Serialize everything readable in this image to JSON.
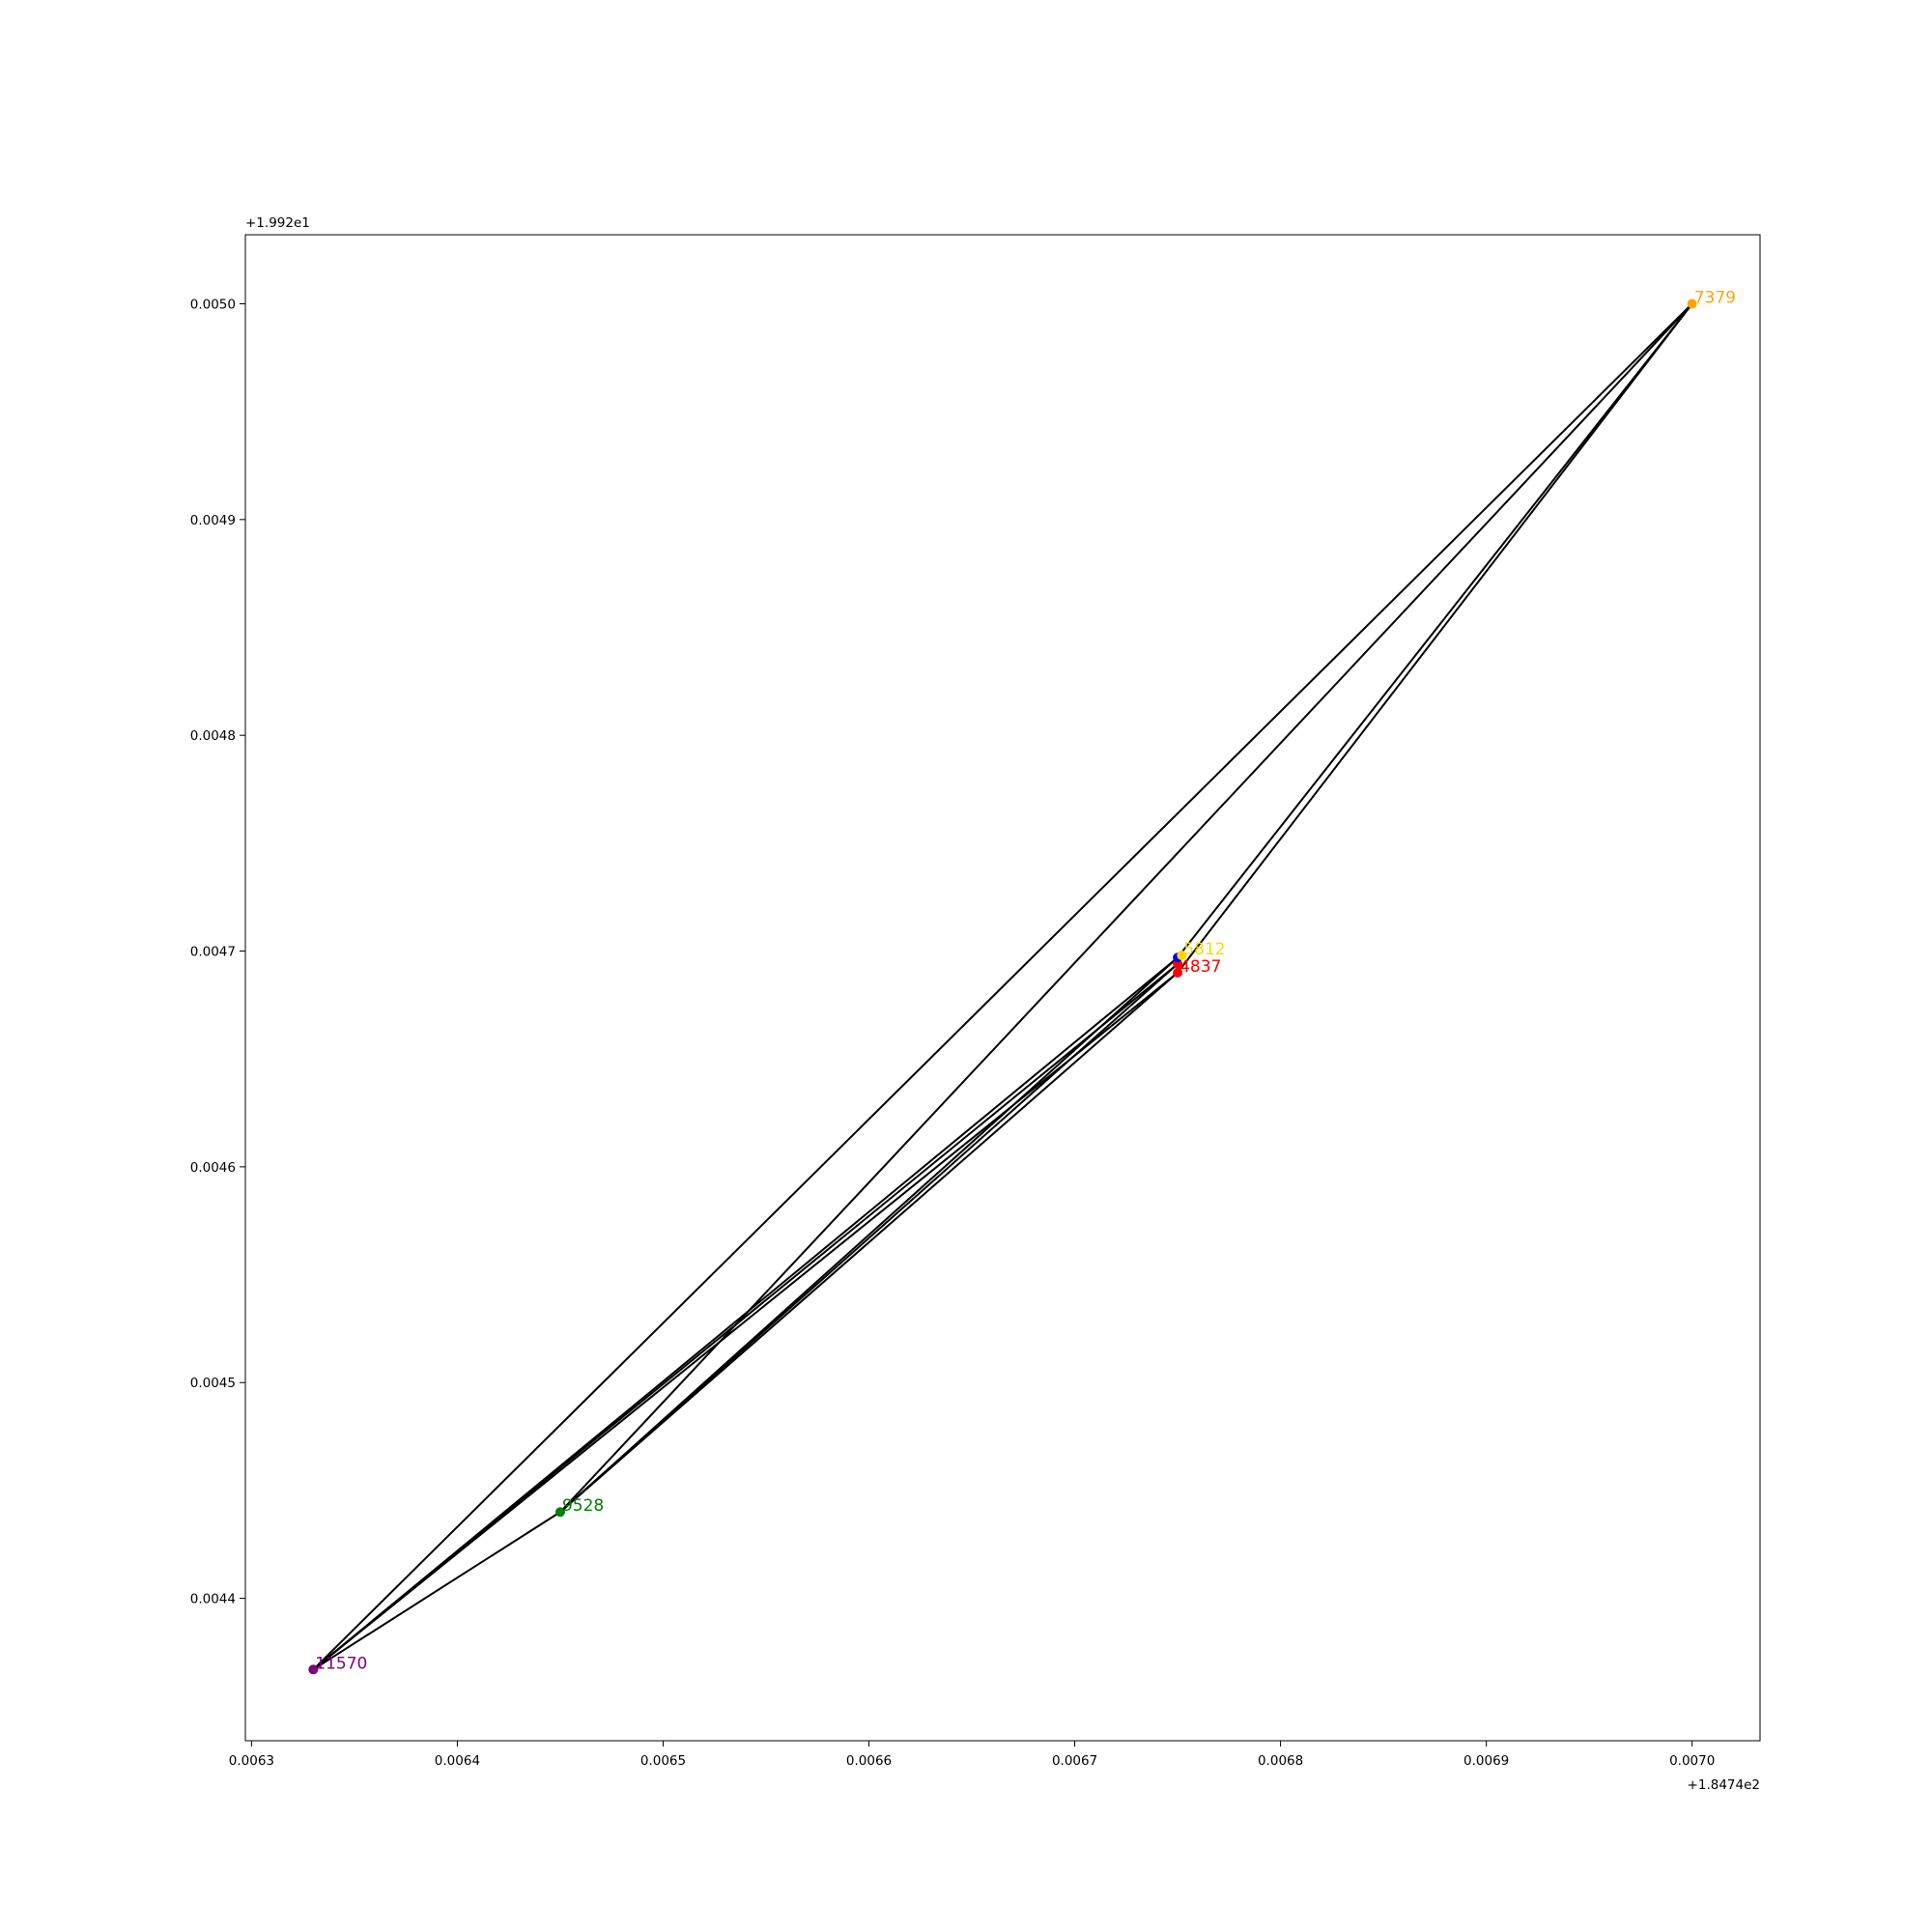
{
  "chart_data": {
    "type": "scatter",
    "title": "",
    "xlabel": "",
    "ylabel": "",
    "x_offset_label": "+1.8474e2",
    "y_offset_label": "+1.992e1",
    "xlim": [
      0.006297,
      0.007033
    ],
    "ylim": [
      0.004334,
      0.005032
    ],
    "grid": false,
    "x_ticks": [
      {
        "value": 0.0063,
        "label": "0.0063"
      },
      {
        "value": 0.0064,
        "label": "0.0064"
      },
      {
        "value": 0.0065,
        "label": "0.0065"
      },
      {
        "value": 0.0066,
        "label": "0.0066"
      },
      {
        "value": 0.0067,
        "label": "0.0067"
      },
      {
        "value": 0.0068,
        "label": "0.0068"
      },
      {
        "value": 0.0069,
        "label": "0.0069"
      },
      {
        "value": 0.007,
        "label": "0.0070"
      }
    ],
    "y_ticks": [
      {
        "value": 0.0044,
        "label": "0.0044"
      },
      {
        "value": 0.0045,
        "label": "0.0045"
      },
      {
        "value": 0.0046,
        "label": "0.0046"
      },
      {
        "value": 0.0047,
        "label": "0.0047"
      },
      {
        "value": 0.0048,
        "label": "0.0048"
      },
      {
        "value": 0.0049,
        "label": "0.0049"
      },
      {
        "value": 0.005,
        "label": "0.0050"
      }
    ],
    "points": [
      {
        "id": "11570",
        "label": "11570",
        "x": 0.00633,
        "y": 0.004367,
        "color": "#800080"
      },
      {
        "id": "9528",
        "label": "9528",
        "x": 0.00645,
        "y": 0.00444,
        "color": "#008000"
      },
      {
        "id": "4837",
        "label": "4837",
        "x": 0.00675,
        "y": 0.00469,
        "color": "#ff0000"
      },
      {
        "id": "r2",
        "label": "",
        "x": 0.00675,
        "y": 0.004694,
        "color": "#ff0000"
      },
      {
        "id": "b1",
        "label": "",
        "x": 0.00675,
        "y": 0.004697,
        "color": "#0000ff"
      },
      {
        "id": "5812",
        "label": "5812",
        "x": 0.006752,
        "y": 0.004698,
        "color": "#ffd700"
      },
      {
        "id": "7379",
        "label": "7379",
        "x": 0.007,
        "y": 0.005,
        "color": "#ffa500"
      }
    ],
    "edges": [
      [
        "11570",
        "7379"
      ],
      [
        "9528",
        "7379"
      ],
      [
        "11570",
        "4837"
      ],
      [
        "11570",
        "r2"
      ],
      [
        "11570",
        "b1"
      ],
      [
        "11570",
        "9528"
      ],
      [
        "9528",
        "4837"
      ],
      [
        "9528",
        "r2"
      ],
      [
        "9528",
        "b1"
      ],
      [
        "4837",
        "7379"
      ],
      [
        "b1",
        "7379"
      ]
    ]
  }
}
